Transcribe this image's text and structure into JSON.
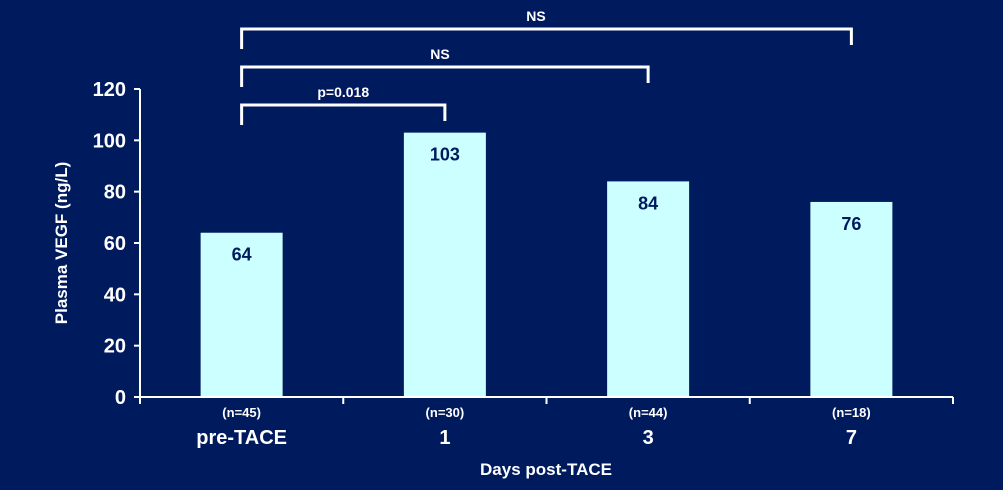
{
  "chart_data": {
    "type": "bar",
    "categories": [
      "pre-TACE",
      "1",
      "3",
      "7"
    ],
    "sample_sizes": [
      "(n=45)",
      "(n=30)",
      "(n=44)",
      "(n=18)"
    ],
    "values": [
      64,
      103,
      84,
      76
    ],
    "data_labels": [
      "64",
      "103",
      "84",
      "76"
    ],
    "xlabel": "Days post-TACE",
    "ylabel": "Plasma VEGF (ng/L)",
    "ylim": [
      0,
      120
    ],
    "yticks": [
      0,
      20,
      40,
      60,
      80,
      100,
      120
    ],
    "grid": false,
    "comparisons": [
      {
        "from": "pre-TACE",
        "to": "1",
        "label": "p=0.018"
      },
      {
        "from": "pre-TACE",
        "to": "3",
        "label": "NS"
      },
      {
        "from": "pre-TACE",
        "to": "7",
        "label": "NS"
      }
    ],
    "colors": {
      "background": "#001a5e",
      "bar": "#ccffff",
      "bar_label": "#001a5e",
      "axis": "#ffffff",
      "text": "#ffffff"
    }
  }
}
